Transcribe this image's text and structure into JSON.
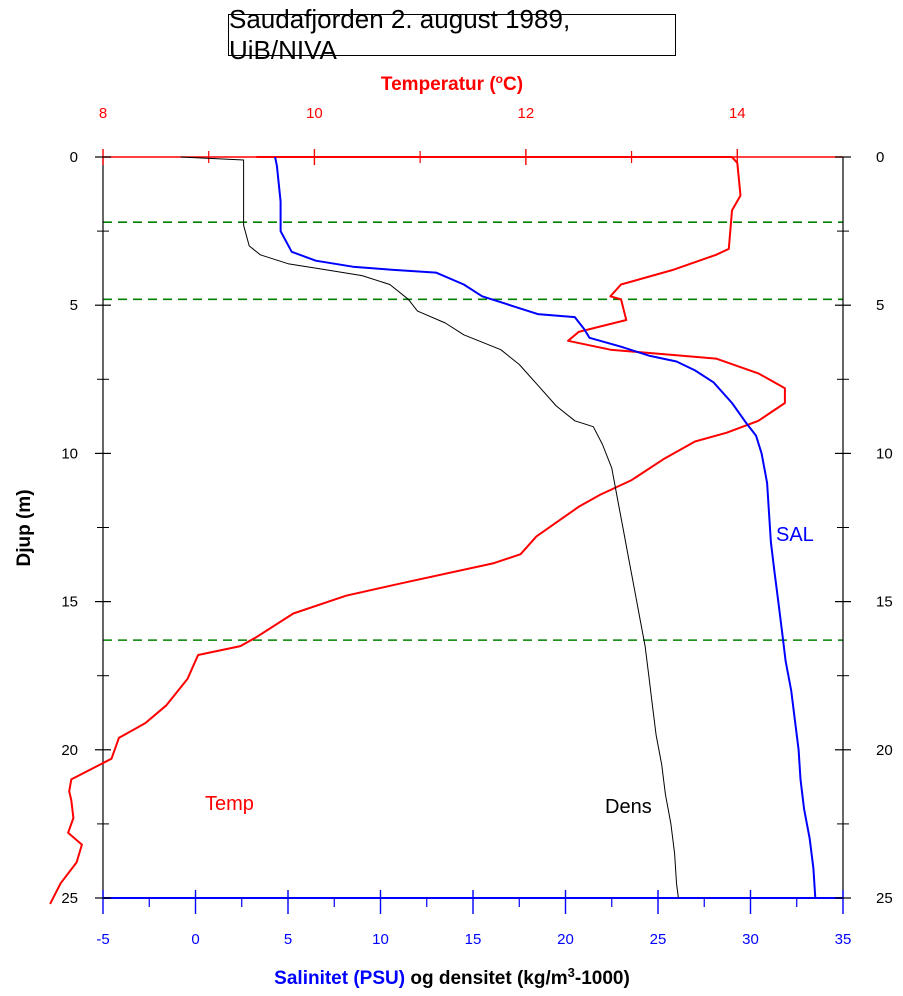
{
  "title": "Saudafjorden 2. august 1989, UiB/NIVA",
  "chart_data": {
    "type": "line",
    "title": "Saudafjorden 2. august 1989, UiB/NIVA",
    "colors": {
      "temp": "#ff0000",
      "sal": "#0000ff",
      "dens": "#000000",
      "ref": "#008000"
    },
    "top_axis": {
      "label_parts": [
        "Temperatur (",
        "o",
        "C)"
      ],
      "range": [
        8,
        15
      ],
      "major_ticks": [
        8,
        10,
        12,
        14
      ],
      "minor_ticks": [
        9,
        11,
        13
      ],
      "color": "#ff0000"
    },
    "bottom_axis": {
      "label_parts": [
        "Salinitet (PSU)",
        " og densitet (kg/m",
        "3",
        "-1000)"
      ],
      "range": [
        -5,
        35
      ],
      "major_ticks": [
        -5,
        0,
        5,
        10,
        15,
        20,
        25,
        30,
        35
      ],
      "color": "#0000ff"
    },
    "y_axis": {
      "label": "Djup (m)",
      "range": [
        0,
        25
      ],
      "reversed": true,
      "major_ticks": [
        0,
        5,
        10,
        15,
        20,
        25
      ]
    },
    "reference_lines_depth": [
      2.2,
      4.8,
      16.3
    ],
    "series": [
      {
        "name": "Temp",
        "axis": "top",
        "points": [
          [
            9.45,
            0
          ],
          [
            13.95,
            0
          ],
          [
            14.0,
            0.2
          ],
          [
            14.03,
            1.3
          ],
          [
            13.95,
            1.8
          ],
          [
            13.92,
            3.1
          ],
          [
            13.8,
            3.3
          ],
          [
            13.4,
            3.8
          ],
          [
            12.9,
            4.3
          ],
          [
            12.8,
            4.7
          ],
          [
            12.9,
            4.8
          ],
          [
            12.95,
            5.5
          ],
          [
            12.5,
            5.9
          ],
          [
            12.4,
            6.2
          ],
          [
            12.8,
            6.5
          ],
          [
            13.8,
            6.8
          ],
          [
            14.2,
            7.3
          ],
          [
            14.45,
            7.8
          ],
          [
            14.45,
            8.3
          ],
          [
            14.2,
            8.9
          ],
          [
            13.9,
            9.3
          ],
          [
            13.6,
            9.6
          ],
          [
            13.3,
            10.2
          ],
          [
            13.0,
            10.9
          ],
          [
            12.7,
            11.4
          ],
          [
            12.5,
            11.8
          ],
          [
            12.3,
            12.3
          ],
          [
            12.1,
            12.8
          ],
          [
            11.95,
            13.4
          ],
          [
            11.7,
            13.7
          ],
          [
            10.8,
            14.4
          ],
          [
            10.3,
            14.8
          ],
          [
            9.8,
            15.4
          ],
          [
            9.45,
            16.2
          ],
          [
            9.3,
            16.5
          ],
          [
            8.9,
            16.8
          ],
          [
            8.8,
            17.6
          ],
          [
            8.6,
            18.5
          ],
          [
            8.5,
            18.8
          ],
          [
            8.4,
            19.1
          ],
          [
            8.15,
            19.6
          ],
          [
            8.08,
            20.3
          ],
          [
            7.7,
            21.0
          ],
          [
            7.68,
            21.4
          ],
          [
            7.7,
            21.7
          ],
          [
            7.72,
            22.3
          ],
          [
            7.67,
            22.8
          ],
          [
            7.8,
            23.2
          ],
          [
            7.75,
            23.8
          ],
          [
            7.6,
            24.5
          ],
          [
            7.5,
            25.2
          ]
        ]
      },
      {
        "name": "SAL",
        "axis": "bottom",
        "points": [
          [
            4.3,
            0
          ],
          [
            4.4,
            0.3
          ],
          [
            4.6,
            1.5
          ],
          [
            4.6,
            2.5
          ],
          [
            5.2,
            3.2
          ],
          [
            6.5,
            3.5
          ],
          [
            8.5,
            3.7
          ],
          [
            10.5,
            3.8
          ],
          [
            13.0,
            3.9
          ],
          [
            14.5,
            4.3
          ],
          [
            15.5,
            4.7
          ],
          [
            16.5,
            4.9
          ],
          [
            17.5,
            5.1
          ],
          [
            18.5,
            5.3
          ],
          [
            20.5,
            5.4
          ],
          [
            21.0,
            5.8
          ],
          [
            21.3,
            6.1
          ],
          [
            23.0,
            6.4
          ],
          [
            24.5,
            6.7
          ],
          [
            26.0,
            6.9
          ],
          [
            27.0,
            7.2
          ],
          [
            28.0,
            7.6
          ],
          [
            29.0,
            8.3
          ],
          [
            29.8,
            9.0
          ],
          [
            30.3,
            9.4
          ],
          [
            30.6,
            10.0
          ],
          [
            30.9,
            11.0
          ],
          [
            31.0,
            12.0
          ],
          [
            31.1,
            13.0
          ],
          [
            31.3,
            14.0
          ],
          [
            31.5,
            15.0
          ],
          [
            31.7,
            16.0
          ],
          [
            31.9,
            17.0
          ],
          [
            32.2,
            18.0
          ],
          [
            32.4,
            19.0
          ],
          [
            32.6,
            20.0
          ],
          [
            32.7,
            21.0
          ],
          [
            32.9,
            22.0
          ],
          [
            33.2,
            23.0
          ],
          [
            33.4,
            24.0
          ],
          [
            33.5,
            25.0
          ]
        ]
      },
      {
        "name": "Dens",
        "axis": "bottom",
        "points": [
          [
            -0.8,
            0
          ],
          [
            2.6,
            0.1
          ],
          [
            2.6,
            0.5
          ],
          [
            2.6,
            1.5
          ],
          [
            2.6,
            2.3
          ],
          [
            2.9,
            3.0
          ],
          [
            3.5,
            3.3
          ],
          [
            5.0,
            3.6
          ],
          [
            7.0,
            3.8
          ],
          [
            9.0,
            4.0
          ],
          [
            10.5,
            4.3
          ],
          [
            11.5,
            4.8
          ],
          [
            12.0,
            5.2
          ],
          [
            13.5,
            5.6
          ],
          [
            14.5,
            6.0
          ],
          [
            16.5,
            6.5
          ],
          [
            17.5,
            7.0
          ],
          [
            18.5,
            7.7
          ],
          [
            19.5,
            8.4
          ],
          [
            20.5,
            8.9
          ],
          [
            21.5,
            9.1
          ],
          [
            22.0,
            9.7
          ],
          [
            22.5,
            10.5
          ],
          [
            22.8,
            11.5
          ],
          [
            23.1,
            12.5
          ],
          [
            23.4,
            13.5
          ],
          [
            23.7,
            14.5
          ],
          [
            24.0,
            15.5
          ],
          [
            24.3,
            16.5
          ],
          [
            24.5,
            17.5
          ],
          [
            24.7,
            18.5
          ],
          [
            24.9,
            19.5
          ],
          [
            25.2,
            20.5
          ],
          [
            25.4,
            21.5
          ],
          [
            25.7,
            22.5
          ],
          [
            25.9,
            23.5
          ],
          [
            26.0,
            24.5
          ],
          [
            26.1,
            25.0
          ]
        ]
      }
    ],
    "labels": [
      {
        "text": "Temp",
        "color": "#ff0000"
      },
      {
        "text": "SAL",
        "color": "#0000ff"
      },
      {
        "text": "Dens",
        "color": "#000000"
      }
    ]
  }
}
